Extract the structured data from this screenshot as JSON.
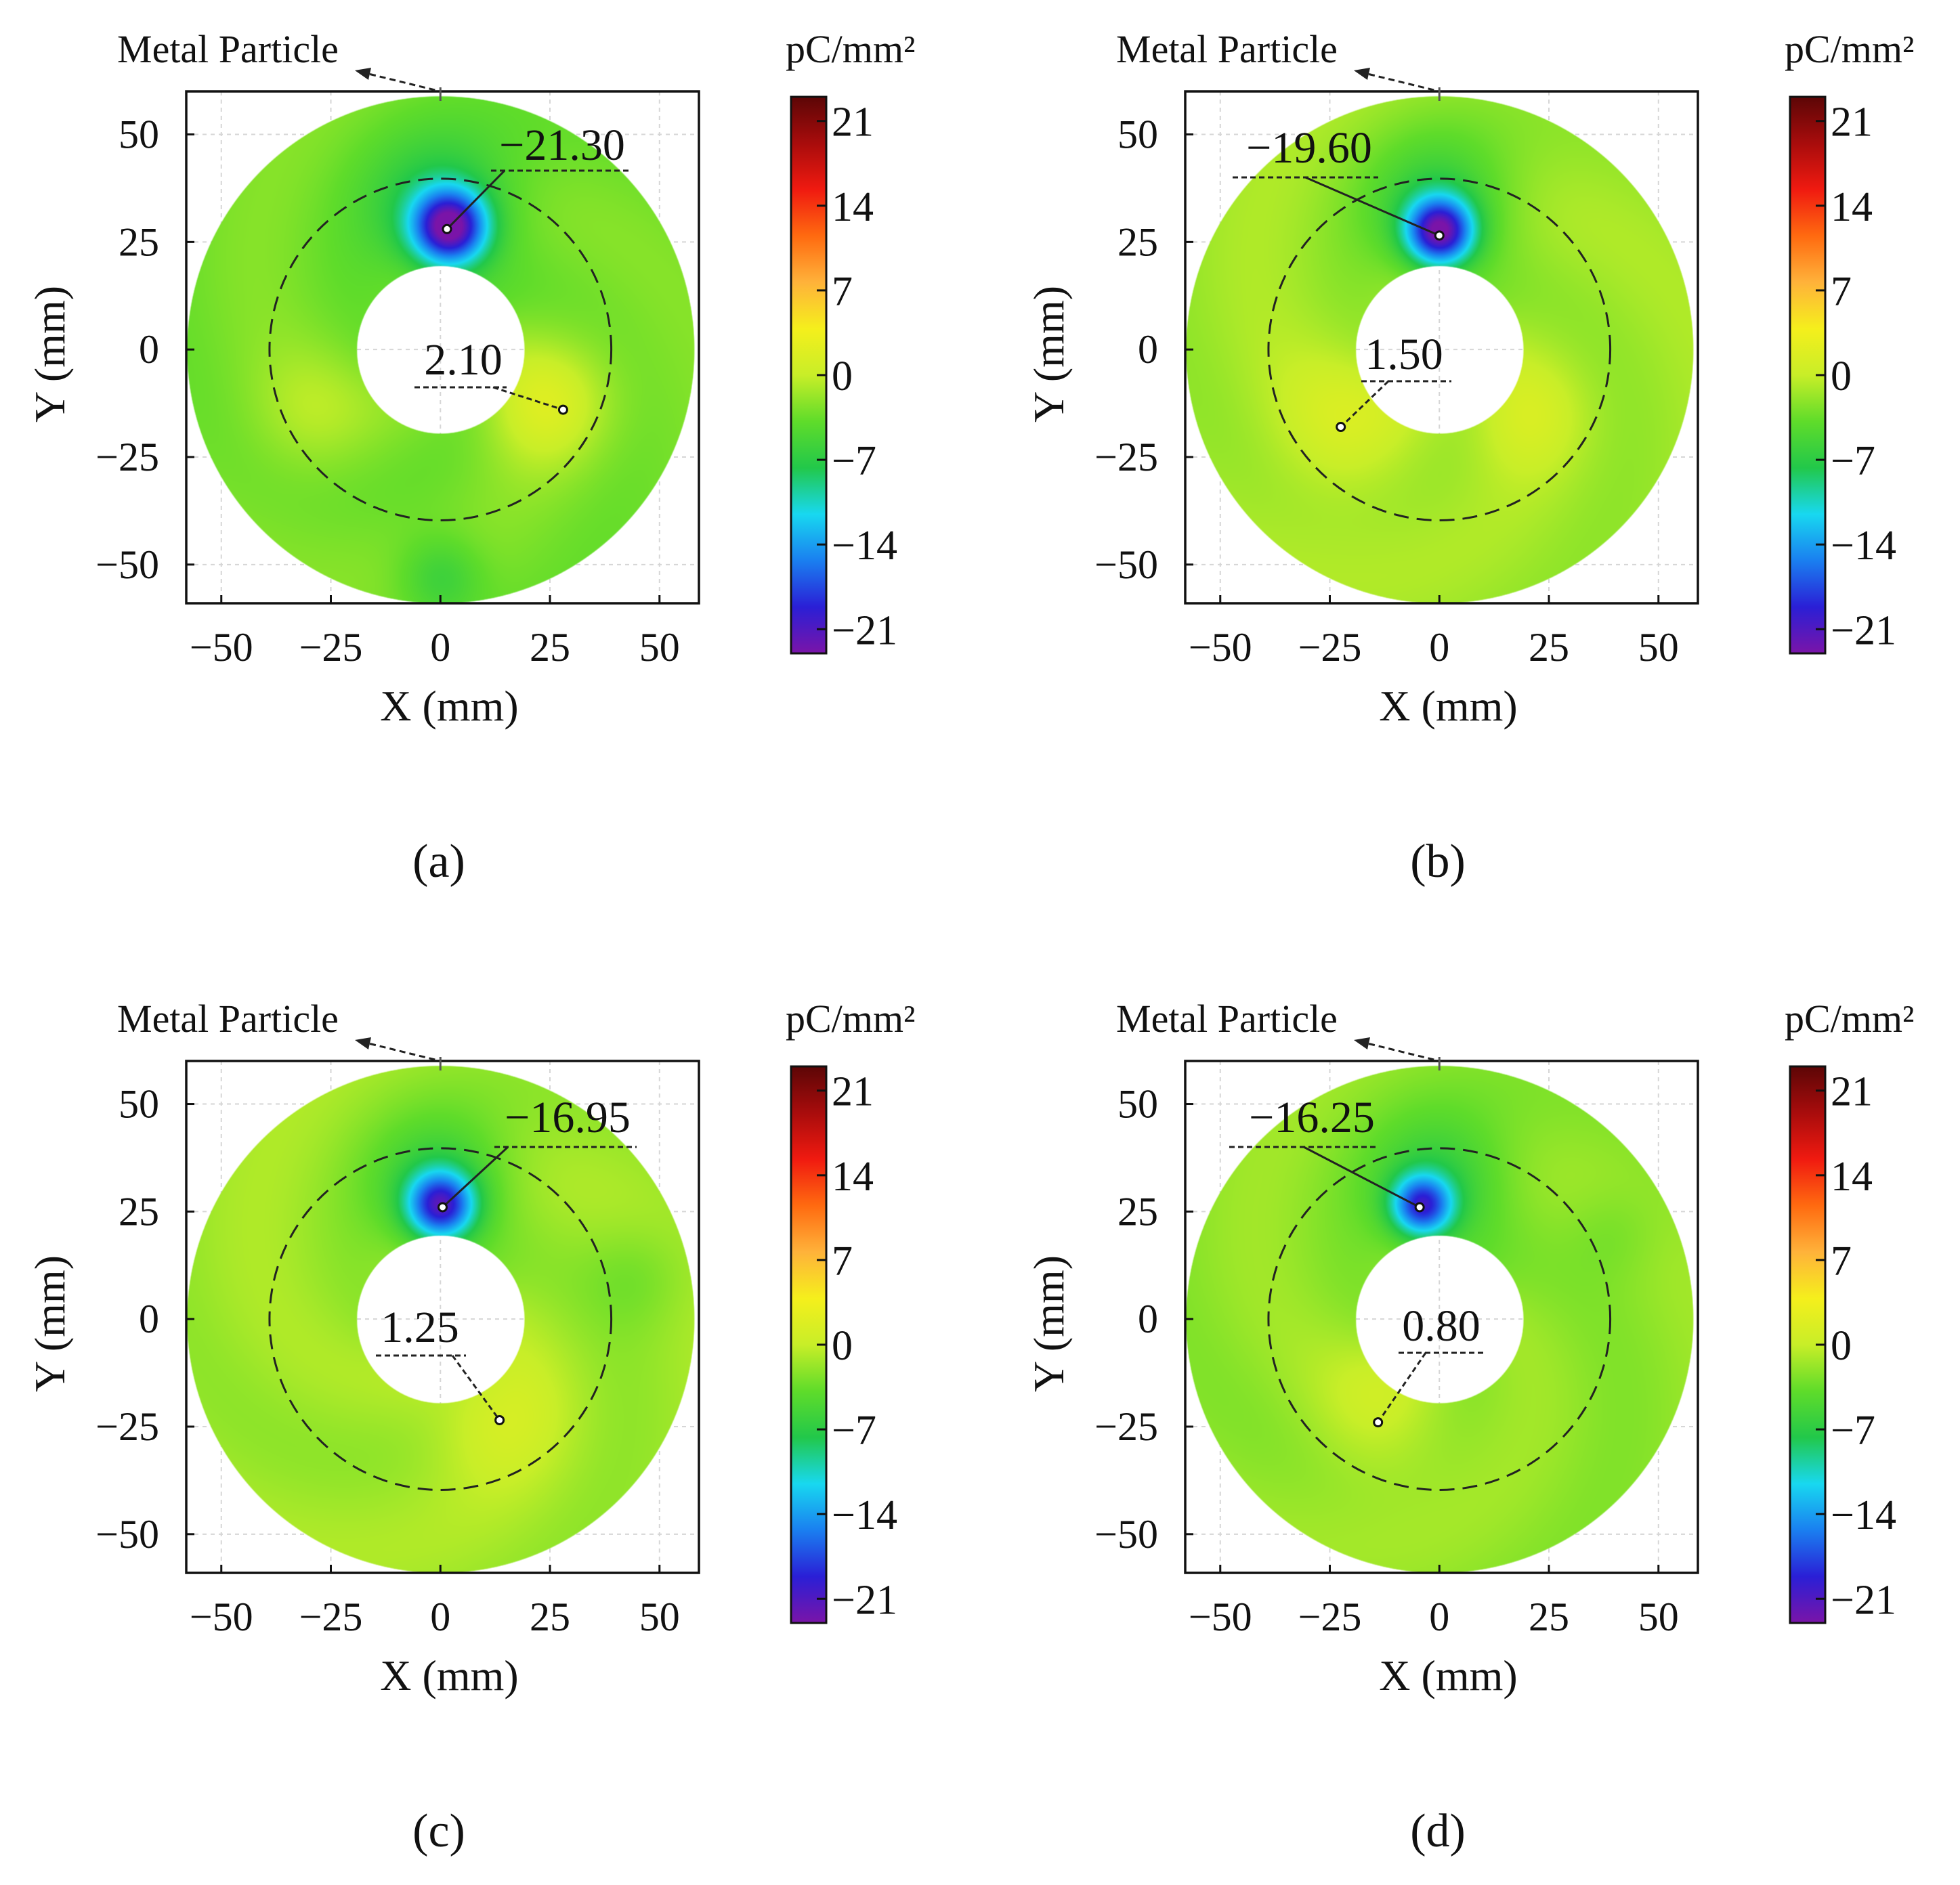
{
  "figure": {
    "colorbar_unit": "pC/mm²",
    "particle_label": "Metal Particle",
    "colors": {
      "scale": [
        "#7a14a8",
        "#2a1fd6",
        "#1a7ff0",
        "#18d8f0",
        "#22c84a",
        "#5fdc2a",
        "#c8ee28",
        "#f5ef1c",
        "#ffb23a",
        "#ff6a10",
        "#f01a10",
        "#a80c0c",
        "#5c0606"
      ]
    }
  },
  "chart_data": [
    {
      "type": "heatmap",
      "panel": "(a)",
      "xlabel": "X (mm)",
      "ylabel": "Y (mm)",
      "xlim": [
        -58,
        59
      ],
      "ylim": [
        -59,
        60
      ],
      "xticks": [
        "−50",
        "−25",
        "0",
        "25",
        "50"
      ],
      "yticks": [
        "50",
        "25",
        "0",
        "−25",
        "−50"
      ],
      "colorbar": {
        "range": [
          -23,
          23
        ],
        "ticks": [
          "21",
          "14",
          "7",
          "0",
          "−7",
          "−14",
          "−21"
        ]
      },
      "inner_radius_mm": 19,
      "outer_radius_mm": 58,
      "dashed_radius_mm": 39,
      "base_value": -3,
      "blobs": [
        {
          "x": 2,
          "y": 28,
          "r": 12,
          "v": -21.3
        },
        {
          "x": 0,
          "y": 32,
          "r": 24,
          "v": -9
        },
        {
          "x": 25,
          "y": -12,
          "r": 22,
          "v": 2.1
        },
        {
          "x": 0,
          "y": -52,
          "r": 14,
          "v": -7
        },
        {
          "x": -30,
          "y": -15,
          "r": 22,
          "v": -0.5
        }
      ],
      "annotations": [
        {
          "label": "−21.30",
          "x": 1.5,
          "y": 28,
          "kind": "min"
        },
        {
          "label": "2.10",
          "x": 28,
          "y": -14,
          "kind": "max"
        }
      ]
    },
    {
      "type": "heatmap",
      "panel": "(b)",
      "xlabel": "X (mm)",
      "ylabel": "Y (mm)",
      "xlim": [
        -58,
        59
      ],
      "ylim": [
        -59,
        60
      ],
      "xticks": [
        "−50",
        "−25",
        "0",
        "25",
        "50"
      ],
      "yticks": [
        "50",
        "25",
        "0",
        "−25",
        "−50"
      ],
      "colorbar": {
        "range": [
          -23,
          23
        ],
        "ticks": [
          "21",
          "14",
          "7",
          "0",
          "−7",
          "−14",
          "−21"
        ]
      },
      "inner_radius_mm": 19,
      "outer_radius_mm": 58,
      "dashed_radius_mm": 39,
      "base_value": -1.5,
      "blobs": [
        {
          "x": 0,
          "y": 27,
          "r": 11,
          "v": -19.6
        },
        {
          "x": 0,
          "y": 32,
          "r": 24,
          "v": -8
        },
        {
          "x": -22,
          "y": -18,
          "r": 26,
          "v": 1.5
        },
        {
          "x": 20,
          "y": -15,
          "r": 20,
          "v": 1.2
        }
      ],
      "annotations": [
        {
          "label": "−19.60",
          "x": 0,
          "y": 26.5,
          "kind": "min"
        },
        {
          "label": "1.50",
          "x": -22.5,
          "y": -18,
          "kind": "max"
        }
      ]
    },
    {
      "type": "heatmap",
      "panel": "(c)",
      "xlabel": "X (mm)",
      "ylabel": "Y (mm)",
      "xlim": [
        -58,
        59
      ],
      "ylim": [
        -59,
        60
      ],
      "xticks": [
        "−50",
        "−25",
        "0",
        "25",
        "50"
      ],
      "yticks": [
        "50",
        "25",
        "0",
        "−25",
        "−50"
      ],
      "colorbar": {
        "range": [
          -23,
          23
        ],
        "ticks": [
          "21",
          "14",
          "7",
          "0",
          "−7",
          "−14",
          "−21"
        ]
      },
      "inner_radius_mm": 19,
      "outer_radius_mm": 58,
      "dashed_radius_mm": 39,
      "base_value": -1.5,
      "blobs": [
        {
          "x": 0,
          "y": 26,
          "r": 11,
          "v": -16.95
        },
        {
          "x": 0,
          "y": 30,
          "r": 23,
          "v": -8
        },
        {
          "x": 12,
          "y": -22,
          "r": 24,
          "v": 1.25
        },
        {
          "x": 45,
          "y": 10,
          "r": 18,
          "v": -3.5
        }
      ],
      "annotations": [
        {
          "label": "−16.95",
          "x": 0.5,
          "y": 26,
          "kind": "min"
        },
        {
          "label": "1.25",
          "x": 13.5,
          "y": -23.5,
          "kind": "max"
        }
      ]
    },
    {
      "type": "heatmap",
      "panel": "(d)",
      "xlabel": "X (mm)",
      "ylabel": "Y (mm)",
      "xlim": [
        -58,
        59
      ],
      "ylim": [
        -59,
        60
      ],
      "xticks": [
        "−50",
        "−25",
        "0",
        "25",
        "50"
      ],
      "yticks": [
        "50",
        "25",
        "0",
        "−25",
        "−50"
      ],
      "colorbar": {
        "range": [
          -23,
          23
        ],
        "ticks": [
          "21",
          "14",
          "7",
          "0",
          "−7",
          "−14",
          "−21"
        ]
      },
      "inner_radius_mm": 19,
      "outer_radius_mm": 58,
      "dashed_radius_mm": 39,
      "base_value": -2,
      "blobs": [
        {
          "x": -4,
          "y": 26,
          "r": 10,
          "v": -16.25
        },
        {
          "x": 0,
          "y": 30,
          "r": 23,
          "v": -8
        },
        {
          "x": -14,
          "y": -22,
          "r": 24,
          "v": 0.8
        },
        {
          "x": 40,
          "y": 20,
          "r": 16,
          "v": -3.5
        }
      ],
      "annotations": [
        {
          "label": "−16.25",
          "x": -4.5,
          "y": 26,
          "kind": "min"
        },
        {
          "label": "0.80",
          "x": -14,
          "y": -24,
          "kind": "max"
        }
      ]
    }
  ]
}
